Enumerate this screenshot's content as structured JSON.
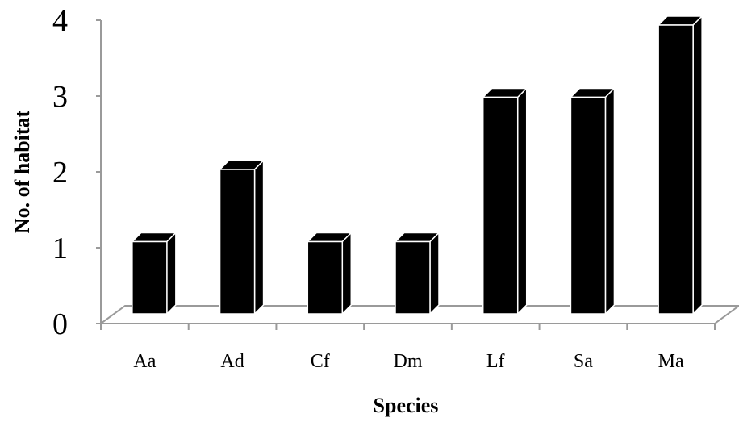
{
  "chart_data": {
    "type": "bar",
    "categories": [
      "Aa",
      "Ad",
      "Cf",
      "Dm",
      "Lf",
      "Sa",
      "Ma"
    ],
    "values": [
      1,
      2,
      1,
      1,
      3,
      3,
      4
    ],
    "title": "",
    "xlabel": "Species",
    "ylabel": "No. of habitat",
    "ylim": [
      0,
      4
    ],
    "yticks": [
      "0",
      "1",
      "2",
      "3",
      "4"
    ],
    "grid": false,
    "bar_style": "3d",
    "colors": {
      "bar_front": "#000000",
      "bar_edge": "#ffffff",
      "axis": "#9a9a9a",
      "text": "#000000"
    }
  }
}
